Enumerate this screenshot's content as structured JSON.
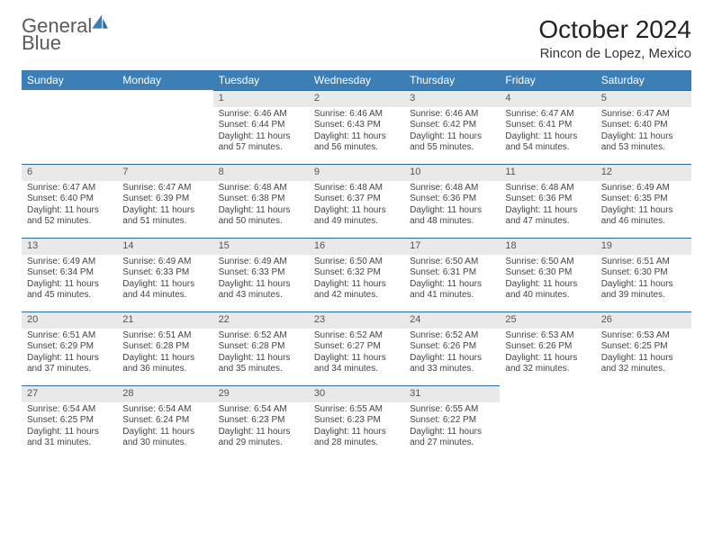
{
  "brand": {
    "name_a": "General",
    "name_b": "Blue"
  },
  "title": {
    "month": "October 2024",
    "location": "Rincon de Lopez, Mexico"
  },
  "colors": {
    "header_bg": "#3b7fb6",
    "daynum_bg": "#e9e9e9",
    "border": "#2e6a99"
  },
  "day_headers": [
    "Sunday",
    "Monday",
    "Tuesday",
    "Wednesday",
    "Thursday",
    "Friday",
    "Saturday"
  ],
  "weeks": [
    [
      null,
      null,
      {
        "n": "1",
        "sr": "6:46 AM",
        "ss": "6:44 PM",
        "dl": "11 hours and 57 minutes."
      },
      {
        "n": "2",
        "sr": "6:46 AM",
        "ss": "6:43 PM",
        "dl": "11 hours and 56 minutes."
      },
      {
        "n": "3",
        "sr": "6:46 AM",
        "ss": "6:42 PM",
        "dl": "11 hours and 55 minutes."
      },
      {
        "n": "4",
        "sr": "6:47 AM",
        "ss": "6:41 PM",
        "dl": "11 hours and 54 minutes."
      },
      {
        "n": "5",
        "sr": "6:47 AM",
        "ss": "6:40 PM",
        "dl": "11 hours and 53 minutes."
      }
    ],
    [
      {
        "n": "6",
        "sr": "6:47 AM",
        "ss": "6:40 PM",
        "dl": "11 hours and 52 minutes."
      },
      {
        "n": "7",
        "sr": "6:47 AM",
        "ss": "6:39 PM",
        "dl": "11 hours and 51 minutes."
      },
      {
        "n": "8",
        "sr": "6:48 AM",
        "ss": "6:38 PM",
        "dl": "11 hours and 50 minutes."
      },
      {
        "n": "9",
        "sr": "6:48 AM",
        "ss": "6:37 PM",
        "dl": "11 hours and 49 minutes."
      },
      {
        "n": "10",
        "sr": "6:48 AM",
        "ss": "6:36 PM",
        "dl": "11 hours and 48 minutes."
      },
      {
        "n": "11",
        "sr": "6:48 AM",
        "ss": "6:36 PM",
        "dl": "11 hours and 47 minutes."
      },
      {
        "n": "12",
        "sr": "6:49 AM",
        "ss": "6:35 PM",
        "dl": "11 hours and 46 minutes."
      }
    ],
    [
      {
        "n": "13",
        "sr": "6:49 AM",
        "ss": "6:34 PM",
        "dl": "11 hours and 45 minutes."
      },
      {
        "n": "14",
        "sr": "6:49 AM",
        "ss": "6:33 PM",
        "dl": "11 hours and 44 minutes."
      },
      {
        "n": "15",
        "sr": "6:49 AM",
        "ss": "6:33 PM",
        "dl": "11 hours and 43 minutes."
      },
      {
        "n": "16",
        "sr": "6:50 AM",
        "ss": "6:32 PM",
        "dl": "11 hours and 42 minutes."
      },
      {
        "n": "17",
        "sr": "6:50 AM",
        "ss": "6:31 PM",
        "dl": "11 hours and 41 minutes."
      },
      {
        "n": "18",
        "sr": "6:50 AM",
        "ss": "6:30 PM",
        "dl": "11 hours and 40 minutes."
      },
      {
        "n": "19",
        "sr": "6:51 AM",
        "ss": "6:30 PM",
        "dl": "11 hours and 39 minutes."
      }
    ],
    [
      {
        "n": "20",
        "sr": "6:51 AM",
        "ss": "6:29 PM",
        "dl": "11 hours and 37 minutes."
      },
      {
        "n": "21",
        "sr": "6:51 AM",
        "ss": "6:28 PM",
        "dl": "11 hours and 36 minutes."
      },
      {
        "n": "22",
        "sr": "6:52 AM",
        "ss": "6:28 PM",
        "dl": "11 hours and 35 minutes."
      },
      {
        "n": "23",
        "sr": "6:52 AM",
        "ss": "6:27 PM",
        "dl": "11 hours and 34 minutes."
      },
      {
        "n": "24",
        "sr": "6:52 AM",
        "ss": "6:26 PM",
        "dl": "11 hours and 33 minutes."
      },
      {
        "n": "25",
        "sr": "6:53 AM",
        "ss": "6:26 PM",
        "dl": "11 hours and 32 minutes."
      },
      {
        "n": "26",
        "sr": "6:53 AM",
        "ss": "6:25 PM",
        "dl": "11 hours and 32 minutes."
      }
    ],
    [
      {
        "n": "27",
        "sr": "6:54 AM",
        "ss": "6:25 PM",
        "dl": "11 hours and 31 minutes."
      },
      {
        "n": "28",
        "sr": "6:54 AM",
        "ss": "6:24 PM",
        "dl": "11 hours and 30 minutes."
      },
      {
        "n": "29",
        "sr": "6:54 AM",
        "ss": "6:23 PM",
        "dl": "11 hours and 29 minutes."
      },
      {
        "n": "30",
        "sr": "6:55 AM",
        "ss": "6:23 PM",
        "dl": "11 hours and 28 minutes."
      },
      {
        "n": "31",
        "sr": "6:55 AM",
        "ss": "6:22 PM",
        "dl": "11 hours and 27 minutes."
      },
      null,
      null
    ]
  ],
  "labels": {
    "sunrise": "Sunrise:",
    "sunset": "Sunset:",
    "daylight": "Daylight:"
  }
}
